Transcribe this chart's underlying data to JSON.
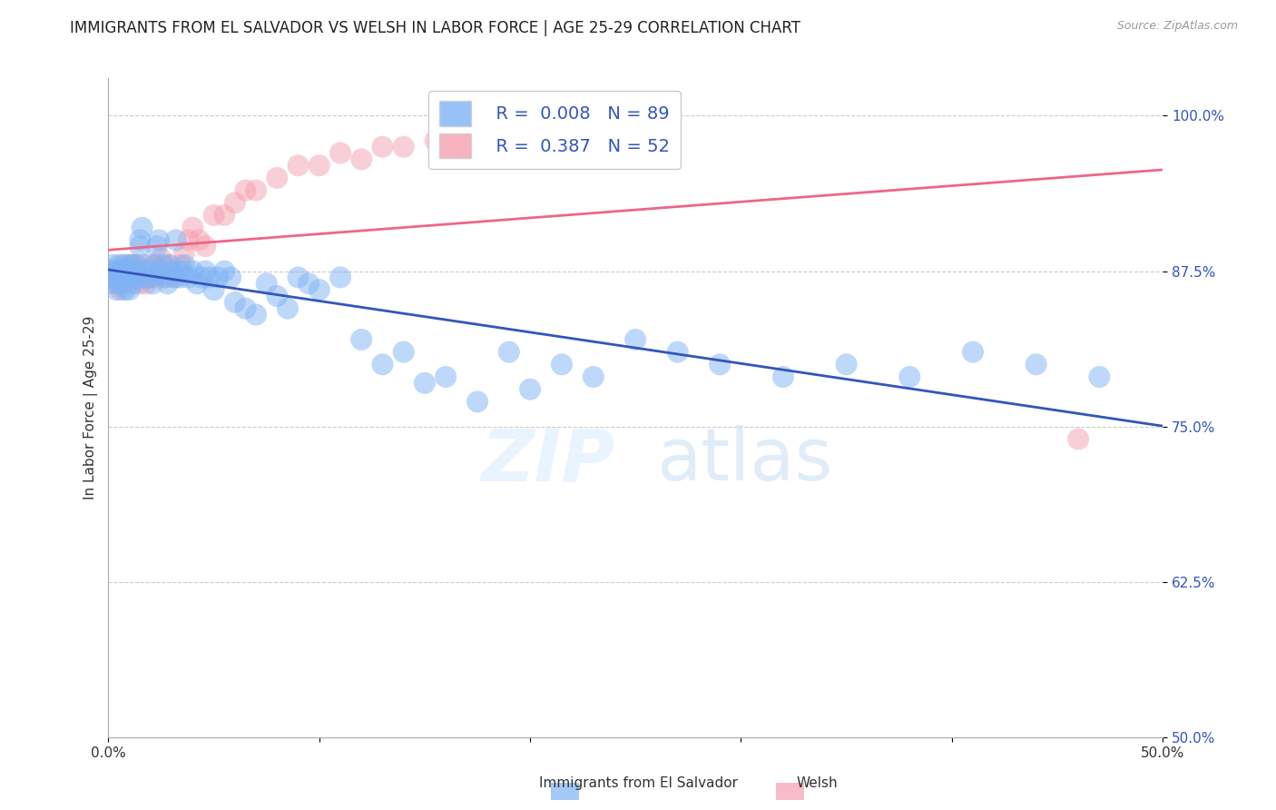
{
  "title": "IMMIGRANTS FROM EL SALVADOR VS WELSH IN LABOR FORCE | AGE 25-29 CORRELATION CHART",
  "source": "Source: ZipAtlas.com",
  "ylabel": "In Labor Force | Age 25-29",
  "xlim": [
    0.0,
    0.5
  ],
  "ylim": [
    0.5,
    1.03
  ],
  "xticks": [
    0.0,
    0.1,
    0.2,
    0.3,
    0.4,
    0.5
  ],
  "xticklabels": [
    "0.0%",
    "",
    "",
    "",
    "",
    "50.0%"
  ],
  "yticks": [
    0.5,
    0.625,
    0.75,
    0.875,
    1.0
  ],
  "yticklabels": [
    "50.0%",
    "62.5%",
    "75.0%",
    "87.5%",
    "100.0%"
  ],
  "blue_color": "#7fb3f5",
  "pink_color": "#f5a0b0",
  "blue_line_color": "#3355bb",
  "pink_line_color": "#ee6688",
  "title_fontsize": 12,
  "axis_label_fontsize": 11,
  "tick_fontsize": 11,
  "legend_fontsize": 14,
  "watermark_zip": "ZIP",
  "watermark_atlas": "atlas",
  "blue_x": [
    0.001,
    0.002,
    0.003,
    0.003,
    0.004,
    0.004,
    0.005,
    0.005,
    0.006,
    0.006,
    0.006,
    0.007,
    0.007,
    0.007,
    0.008,
    0.008,
    0.009,
    0.009,
    0.01,
    0.01,
    0.011,
    0.011,
    0.012,
    0.012,
    0.013,
    0.013,
    0.014,
    0.015,
    0.015,
    0.016,
    0.017,
    0.018,
    0.019,
    0.02,
    0.021,
    0.022,
    0.023,
    0.024,
    0.025,
    0.026,
    0.027,
    0.028,
    0.029,
    0.03,
    0.031,
    0.032,
    0.033,
    0.034,
    0.035,
    0.036,
    0.038,
    0.04,
    0.042,
    0.044,
    0.046,
    0.048,
    0.05,
    0.052,
    0.055,
    0.058,
    0.06,
    0.065,
    0.07,
    0.075,
    0.08,
    0.085,
    0.09,
    0.095,
    0.1,
    0.11,
    0.12,
    0.13,
    0.14,
    0.15,
    0.16,
    0.175,
    0.19,
    0.2,
    0.215,
    0.23,
    0.25,
    0.27,
    0.29,
    0.32,
    0.35,
    0.38,
    0.41,
    0.44,
    0.47
  ],
  "blue_y": [
    0.875,
    0.88,
    0.87,
    0.865,
    0.875,
    0.86,
    0.88,
    0.87,
    0.875,
    0.87,
    0.865,
    0.88,
    0.87,
    0.875,
    0.86,
    0.87,
    0.875,
    0.88,
    0.87,
    0.86,
    0.88,
    0.875,
    0.87,
    0.865,
    0.88,
    0.875,
    0.87,
    0.895,
    0.9,
    0.91,
    0.88,
    0.87,
    0.875,
    0.87,
    0.865,
    0.88,
    0.895,
    0.9,
    0.875,
    0.88,
    0.87,
    0.865,
    0.88,
    0.875,
    0.87,
    0.9,
    0.875,
    0.87,
    0.875,
    0.88,
    0.87,
    0.875,
    0.865,
    0.87,
    0.875,
    0.87,
    0.86,
    0.87,
    0.875,
    0.87,
    0.85,
    0.845,
    0.84,
    0.865,
    0.855,
    0.845,
    0.87,
    0.865,
    0.86,
    0.87,
    0.82,
    0.8,
    0.81,
    0.785,
    0.79,
    0.77,
    0.81,
    0.78,
    0.8,
    0.79,
    0.82,
    0.81,
    0.8,
    0.79,
    0.8,
    0.79,
    0.81,
    0.8,
    0.79
  ],
  "pink_x": [
    0.001,
    0.002,
    0.003,
    0.004,
    0.005,
    0.006,
    0.007,
    0.008,
    0.009,
    0.01,
    0.011,
    0.012,
    0.013,
    0.014,
    0.015,
    0.016,
    0.017,
    0.018,
    0.019,
    0.02,
    0.021,
    0.022,
    0.023,
    0.024,
    0.025,
    0.027,
    0.028,
    0.03,
    0.032,
    0.034,
    0.036,
    0.038,
    0.04,
    0.043,
    0.046,
    0.05,
    0.055,
    0.06,
    0.065,
    0.07,
    0.08,
    0.09,
    0.1,
    0.11,
    0.12,
    0.13,
    0.14,
    0.155,
    0.17,
    0.19,
    0.21,
    0.46
  ],
  "pink_y": [
    0.875,
    0.865,
    0.87,
    0.875,
    0.865,
    0.86,
    0.87,
    0.875,
    0.865,
    0.88,
    0.87,
    0.875,
    0.88,
    0.87,
    0.865,
    0.87,
    0.875,
    0.865,
    0.87,
    0.88,
    0.875,
    0.87,
    0.88,
    0.875,
    0.885,
    0.87,
    0.88,
    0.875,
    0.87,
    0.88,
    0.89,
    0.9,
    0.91,
    0.9,
    0.895,
    0.92,
    0.92,
    0.93,
    0.94,
    0.94,
    0.95,
    0.96,
    0.96,
    0.97,
    0.965,
    0.975,
    0.975,
    0.98,
    0.985,
    0.99,
    0.99,
    0.74
  ]
}
